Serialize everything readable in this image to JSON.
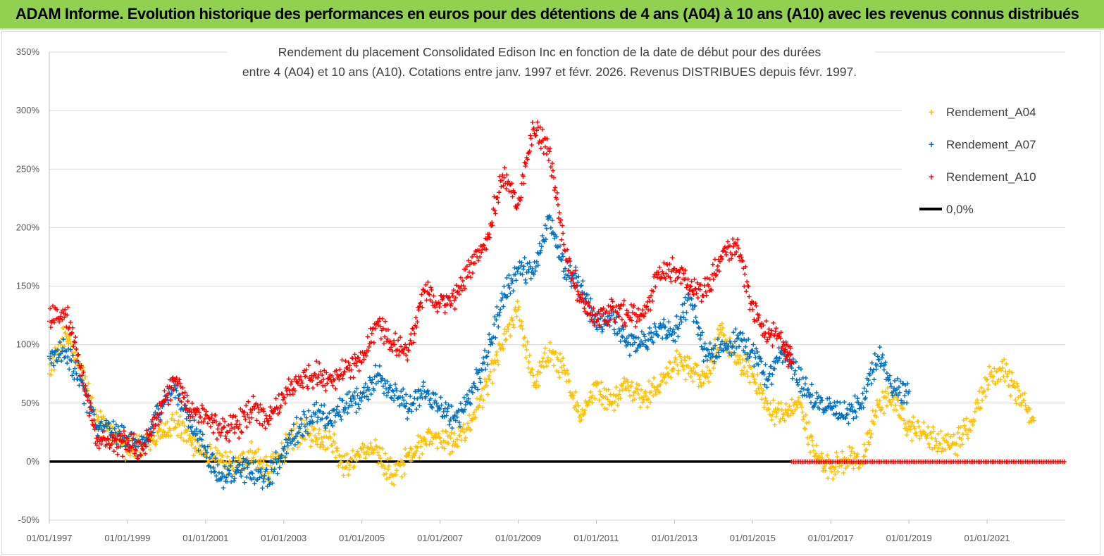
{
  "header": {
    "title": "ADAM Informe. Evolution historique des performances en euros pour des détentions de 4 ans (A04) à 10 ans (A10) avec les revenus connus distribués"
  },
  "colors": {
    "header_bg": "#92d050",
    "A04": "#ffc000",
    "A07": "#0070c0",
    "A10": "#ff0000",
    "zero": "#000000"
  },
  "chart_data": {
    "type": "scatter",
    "title_lines": [
      "Rendement du placement Consolidated Edison Inc en fonction de la date de début pour des durées",
      "entre 4 (A04) et 10 ans (A10).  Cotations entre janv. 1997 et févr. 2026. Revenus DISTRIBUES depuis févr. 1997."
    ],
    "x_ticks": [
      "01/01/1997",
      "01/01/1999",
      "01/01/2001",
      "01/01/2003",
      "01/01/2005",
      "01/01/2007",
      "01/01/2009",
      "01/01/2011",
      "01/01/2013",
      "01/01/2015",
      "01/01/2017",
      "01/01/2019",
      "01/01/2021"
    ],
    "xlim": [
      1997.0,
      2023.0
    ],
    "ylim": [
      -50,
      350
    ],
    "y_ticks": [
      "-50%",
      "0%",
      "50%",
      "100%",
      "150%",
      "200%",
      "250%",
      "300%",
      "350%"
    ],
    "legend_position": "top-right",
    "series": [
      {
        "name": "Rendement_A04",
        "marker": "+",
        "x": [
          1997.0,
          1997.4,
          1997.8,
          1998.2,
          1998.6,
          1999.0,
          1999.4,
          1999.8,
          2000.2,
          2000.6,
          2001.0,
          2001.4,
          2001.8,
          2002.2,
          2002.6,
          2003.0,
          2003.4,
          2003.8,
          2004.2,
          2004.6,
          2005.0,
          2005.4,
          2005.8,
          2006.2,
          2006.6,
          2007.0,
          2007.4,
          2007.8,
          2008.2,
          2008.6,
          2009.0,
          2009.4,
          2009.8,
          2010.2,
          2010.6,
          2011.0,
          2011.4,
          2011.8,
          2012.2,
          2012.6,
          2013.0,
          2013.4,
          2013.8,
          2014.2,
          2014.6,
          2015.0,
          2015.4,
          2015.8,
          2016.2,
          2016.6,
          2017.0,
          2017.4,
          2017.8,
          2018.2,
          2018.6,
          2019.0,
          2019.4,
          2019.8,
          2020.2,
          2020.6,
          2021.0,
          2021.4,
          2021.8,
          2022.2
        ],
        "y": [
          75,
          110,
          80,
          40,
          25,
          10,
          15,
          22,
          35,
          20,
          5,
          0,
          -5,
          8,
          -10,
          10,
          25,
          22,
          20,
          -5,
          10,
          8,
          -12,
          5,
          20,
          20,
          15,
          35,
          65,
          100,
          130,
          65,
          95,
          75,
          40,
          65,
          50,
          68,
          55,
          65,
          85,
          80,
          72,
          110,
          85,
          75,
          45,
          40,
          50,
          5,
          -5,
          2,
          0,
          48,
          55,
          30,
          25,
          15,
          15,
          35,
          70,
          80,
          55,
          35
        ]
      },
      {
        "name": "Rendement_A07",
        "marker": "+",
        "x": [
          1997.0,
          1997.4,
          1997.8,
          1998.2,
          1998.6,
          1999.0,
          1999.4,
          1999.8,
          2000.2,
          2000.6,
          2001.0,
          2001.4,
          2001.8,
          2002.2,
          2002.6,
          2003.0,
          2003.4,
          2003.8,
          2004.2,
          2004.6,
          2005.0,
          2005.4,
          2005.8,
          2006.2,
          2006.6,
          2007.0,
          2007.4,
          2007.8,
          2008.2,
          2008.6,
          2009.0,
          2009.4,
          2009.8,
          2010.2,
          2010.6,
          2011.0,
          2011.4,
          2011.8,
          2012.2,
          2012.6,
          2013.0,
          2013.4,
          2013.8,
          2014.2,
          2014.6,
          2015.0,
          2015.4,
          2015.8,
          2016.2,
          2016.6,
          2017.0,
          2017.4,
          2017.8,
          2018.2,
          2018.6,
          2019.0
        ],
        "y": [
          90,
          95,
          70,
          30,
          25,
          20,
          10,
          45,
          65,
          35,
          10,
          -15,
          -5,
          -10,
          -15,
          10,
          30,
          40,
          35,
          50,
          55,
          75,
          60,
          45,
          60,
          45,
          35,
          60,
          90,
          140,
          165,
          160,
          210,
          165,
          150,
          115,
          125,
          100,
          100,
          115,
          110,
          140,
          90,
          95,
          105,
          95,
          70,
          95,
          70,
          50,
          45,
          40,
          50,
          90,
          60,
          60
        ]
      },
      {
        "name": "Rendement_A10",
        "marker": "+",
        "x": [
          1997.0,
          1997.4,
          1997.8,
          1998.2,
          1998.6,
          1999.0,
          1999.4,
          1999.8,
          2000.2,
          2000.6,
          2001.0,
          2001.4,
          2001.8,
          2002.2,
          2002.6,
          2003.0,
          2003.4,
          2003.8,
          2004.2,
          2004.6,
          2005.0,
          2005.4,
          2005.8,
          2006.2,
          2006.6,
          2007.0,
          2007.4,
          2007.8,
          2008.2,
          2008.6,
          2009.0,
          2009.4,
          2009.8,
          2010.2,
          2010.6,
          2011.0,
          2011.4,
          2011.8,
          2012.2,
          2012.6,
          2013.0,
          2013.4,
          2013.8,
          2014.2,
          2014.6,
          2015.0,
          2015.4,
          2015.8,
          2016.0
        ],
        "y": [
          120,
          130,
          80,
          20,
          15,
          15,
          10,
          40,
          70,
          45,
          40,
          25,
          30,
          45,
          35,
          55,
          70,
          75,
          70,
          80,
          85,
          120,
          100,
          95,
          145,
          135,
          140,
          170,
          190,
          245,
          220,
          285,
          265,
          180,
          140,
          120,
          130,
          125,
          125,
          160,
          165,
          150,
          145,
          175,
          185,
          130,
          110,
          100,
          85
        ]
      },
      {
        "name": "0,0%",
        "type": "line",
        "x": [
          1997.0,
          2016.0
        ],
        "y": [
          0,
          0
        ]
      }
    ],
    "a10_zero_tail_x": [
      2016.0,
      2023.0
    ],
    "legend": [
      "Rendement_A04",
      "Rendement_A07",
      "Rendement_A10",
      "0,0%"
    ]
  }
}
